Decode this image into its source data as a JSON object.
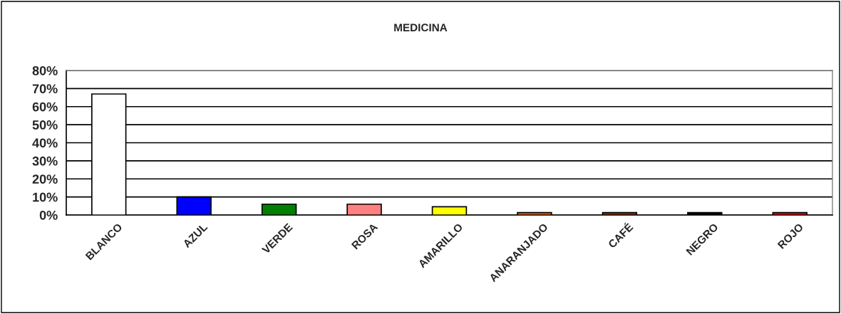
{
  "chart_data": {
    "type": "bar",
    "title": "MEDICINA",
    "categories": [
      "BLANCO",
      "AZUL",
      "VERDE",
      "ROSA",
      "AMARILLO",
      "ANARANJADO",
      "CAFÉ",
      "NEGRO",
      "ROJO"
    ],
    "values": [
      67,
      10,
      6,
      6,
      4.6,
      1.3,
      1.3,
      1.3,
      1.3
    ],
    "colors": [
      "#ffffff",
      "#0000ff",
      "#008000",
      "#ff8080",
      "#ffff00",
      "#ff6600",
      "#993300",
      "#000000",
      "#ff0000"
    ],
    "ylim": [
      0,
      80
    ],
    "yticks": [
      {
        "value": 0,
        "label": "0%"
      },
      {
        "value": 10,
        "label": "10%"
      },
      {
        "value": 20,
        "label": "20%"
      },
      {
        "value": 30,
        "label": "30%"
      },
      {
        "value": 40,
        "label": "40%"
      },
      {
        "value": 50,
        "label": "50%"
      },
      {
        "value": 60,
        "label": "60%"
      },
      {
        "value": 70,
        "label": "70%"
      },
      {
        "value": 80,
        "label": "80%"
      }
    ],
    "grid": "y",
    "legend": false
  }
}
